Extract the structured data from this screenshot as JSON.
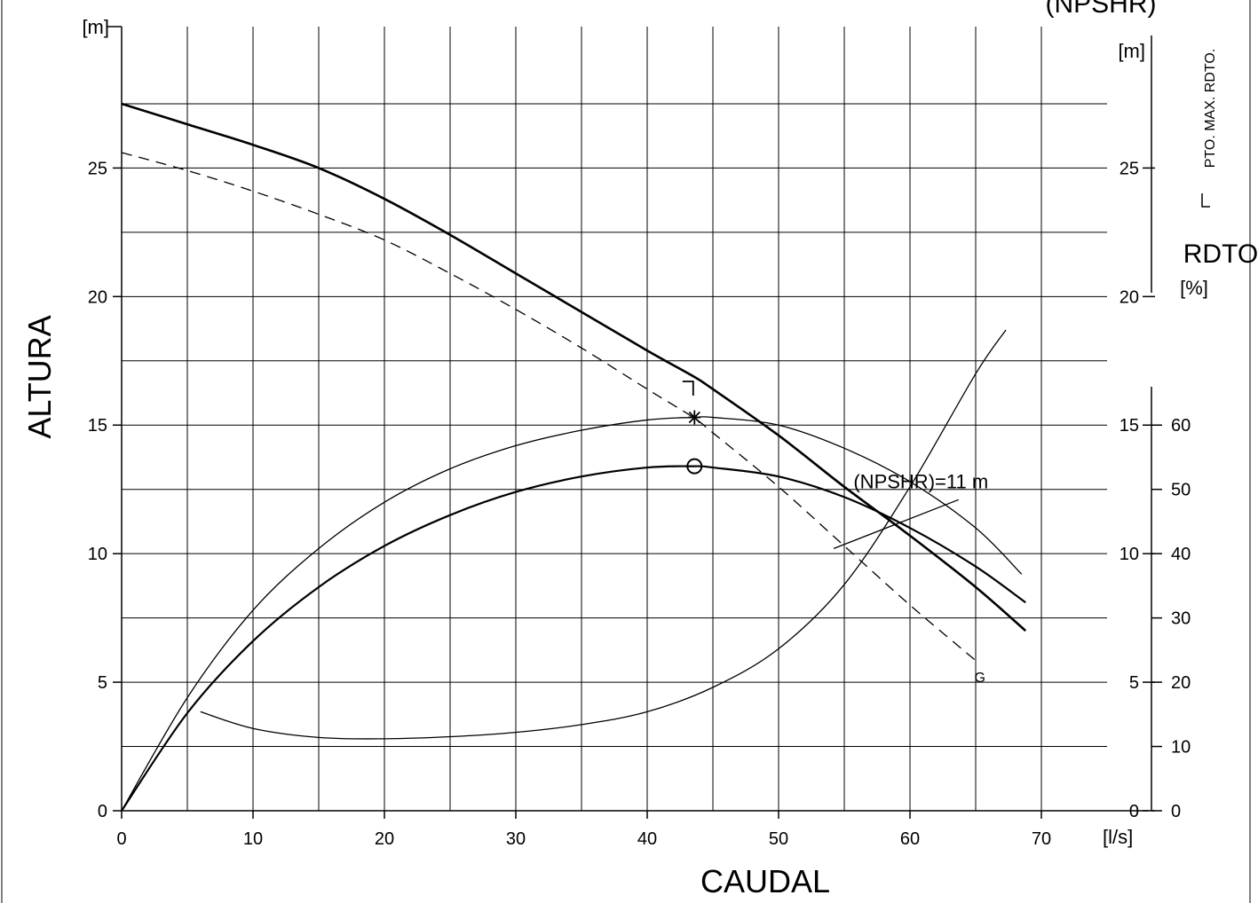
{
  "chart_data": {
    "type": "line",
    "xlabel": "CAUDAL",
    "ylabel": "ALTURA",
    "x_unit": "[l/s]",
    "y_unit": "[m]",
    "right_unit": "[m]",
    "right2_title": "RDTO",
    "right2_unit": "[%]",
    "top_right_label": "(NPSHR)",
    "max_eff_legend": "PTO. MAX. RDTO.",
    "xlim": [
      0,
      75
    ],
    "ylim": [
      0,
      30.5
    ],
    "x_ticks": [
      "0",
      "10",
      "20",
      "30",
      "40",
      "50",
      "60",
      "70"
    ],
    "y_ticks": [
      "0",
      "5",
      "10",
      "15",
      "20",
      "25"
    ],
    "right_ticks": [
      "0",
      "5",
      "10",
      "15",
      "20",
      "25"
    ],
    "eff_ticks": [
      "0",
      "10",
      "20",
      "30",
      "40",
      "50",
      "60"
    ],
    "eff_scale": {
      "m_per_percent": 0.25
    },
    "series": [
      {
        "key": "head_a",
        "style": "thick",
        "x": [
          0,
          5,
          10,
          15,
          20,
          25,
          30,
          35,
          40,
          43.5,
          45,
          50,
          55,
          60,
          65,
          68.8
        ],
        "y": [
          27.5,
          26.7,
          25.9,
          25.0,
          23.8,
          22.4,
          20.9,
          19.4,
          17.9,
          16.9,
          16.4,
          14.6,
          12.6,
          10.7,
          8.7,
          7.0
        ]
      },
      {
        "key": "head_b",
        "style": "dashed",
        "x": [
          0,
          5,
          10,
          15,
          20,
          25,
          30,
          35,
          40,
          43.5,
          45,
          50,
          55,
          60,
          65.1
        ],
        "y": [
          25.6,
          24.9,
          24.1,
          23.2,
          22.2,
          20.9,
          19.5,
          18.0,
          16.4,
          15.3,
          14.7,
          12.6,
          10.3,
          8.0,
          5.8
        ]
      },
      {
        "key": "eff_a",
        "style": "thin",
        "x": [
          0,
          5,
          10,
          15,
          20,
          25,
          30,
          35,
          40,
          43.5,
          45,
          50,
          55,
          60,
          65,
          68.5
        ],
        "y": [
          0,
          4.4,
          7.8,
          10.2,
          12.0,
          13.3,
          14.2,
          14.8,
          15.2,
          15.3,
          15.3,
          15.0,
          14.1,
          12.8,
          11.0,
          9.2
        ]
      },
      {
        "key": "eff_b",
        "style": "medium",
        "x": [
          0,
          5,
          10,
          15,
          20,
          25,
          30,
          35,
          40,
          43.5,
          45,
          50,
          55,
          60,
          65,
          68.8
        ],
        "y": [
          0,
          3.8,
          6.6,
          8.7,
          10.3,
          11.5,
          12.4,
          13.0,
          13.35,
          13.4,
          13.35,
          13.0,
          12.2,
          11.0,
          9.5,
          8.1
        ]
      },
      {
        "key": "npshr",
        "style": "thin",
        "x": [
          6,
          10,
          15,
          20,
          25,
          30,
          35,
          40,
          45,
          50,
          55,
          60,
          65,
          67.3
        ],
        "y": [
          3.85,
          3.2,
          2.85,
          2.8,
          2.88,
          3.05,
          3.35,
          3.85,
          4.8,
          6.3,
          8.8,
          12.6,
          17.0,
          18.7
        ]
      },
      {
        "key": "npshr_ref",
        "style": "thin",
        "x": [
          54.2,
          63.7
        ],
        "y": [
          10.2,
          12.1
        ]
      }
    ],
    "annotations": [
      {
        "text": "(NPSHR)=11 m",
        "x": 55.7,
        "y": 12.55
      },
      {
        "text": "G",
        "x": 64.9,
        "y": 5.0
      }
    ],
    "markers": [
      {
        "type": "max-eff-symbol",
        "x": 43.5,
        "y": 16.7
      },
      {
        "type": "star",
        "x": 43.6,
        "y": 15.3
      },
      {
        "type": "circle",
        "x": 43.6,
        "y": 13.4
      }
    ]
  }
}
